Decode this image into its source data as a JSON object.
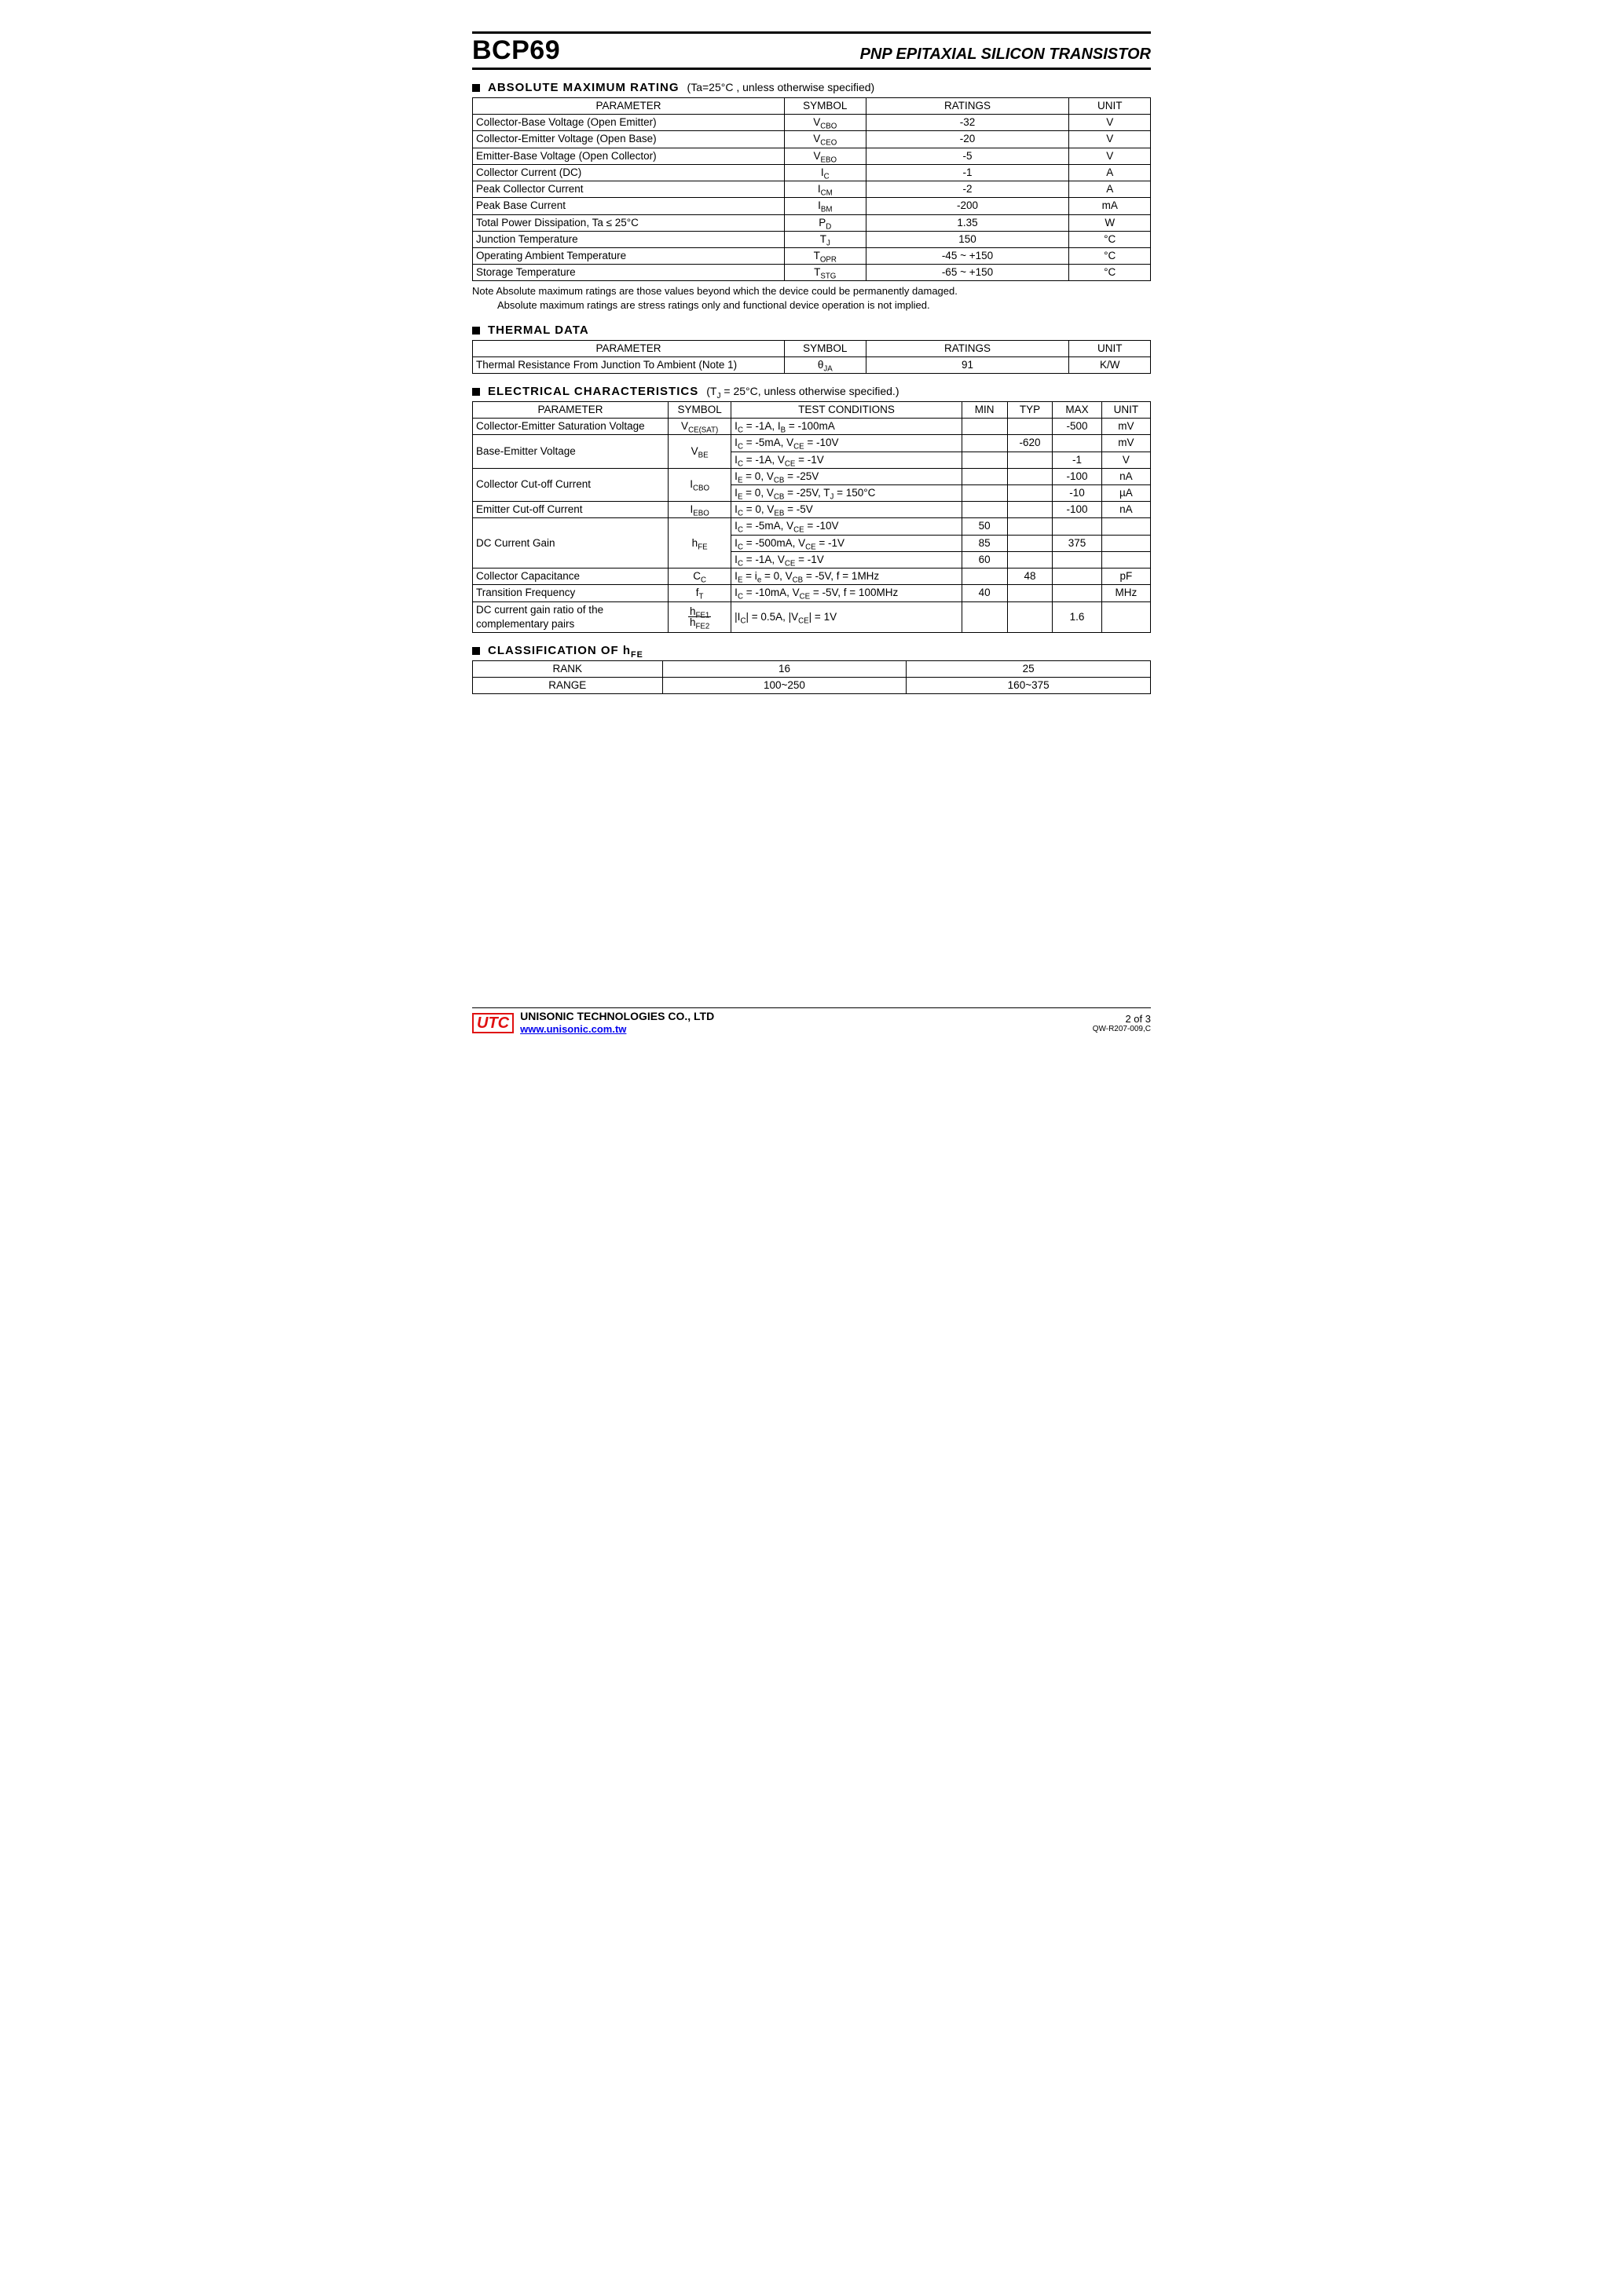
{
  "header": {
    "part_number": "BCP69",
    "title": "PNP EPITAXIAL SILICON TRANSISTOR"
  },
  "sections": {
    "amr": {
      "title": "ABSOLUTE MAXIMUM RATING",
      "conditions": "(Ta=25°C , unless otherwise specified)",
      "columns": [
        "PARAMETER",
        "SYMBOL",
        "RATINGS",
        "UNIT"
      ],
      "rows": [
        {
          "param": "Collector-Base Voltage (Open Emitter)",
          "sym_html": "V<sub>CBO</sub>",
          "rating": "-32",
          "unit": "V"
        },
        {
          "param": "Collector-Emitter Voltage (Open Base)",
          "sym_html": "V<sub>CEO</sub>",
          "rating": "-20",
          "unit": "V"
        },
        {
          "param": "Emitter-Base Voltage (Open Collector)",
          "sym_html": "V<sub>EBO</sub>",
          "rating": "-5",
          "unit": "V"
        },
        {
          "param": "Collector Current (DC)",
          "sym_html": "I<sub>C</sub>",
          "rating": "-1",
          "unit": "A"
        },
        {
          "param": "Peak Collector Current",
          "sym_html": "I<sub>CM</sub>",
          "rating": "-2",
          "unit": "A"
        },
        {
          "param": "Peak Base Current",
          "sym_html": "I<sub>BM</sub>",
          "rating": "-200",
          "unit": "mA"
        },
        {
          "param": "Total Power Dissipation, Ta ≤ 25°C",
          "sym_html": "P<sub>D</sub>",
          "rating": "1.35",
          "unit": "W"
        },
        {
          "param": "Junction Temperature",
          "sym_html": "T<sub>J</sub>",
          "rating": "150",
          "unit": "°C"
        },
        {
          "param": "Operating Ambient Temperature",
          "sym_html": "T<sub>OPR</sub>",
          "rating": "-45 ~ +150",
          "unit": "°C"
        },
        {
          "param": "Storage Temperature",
          "sym_html": "T<sub>STG</sub>",
          "rating": "-65 ~ +150",
          "unit": "°C"
        }
      ],
      "note_line1": "Note Absolute maximum ratings are those values beyond which the device could be permanently damaged.",
      "note_line2": "Absolute maximum ratings are stress ratings only and functional device operation is not implied."
    },
    "thermal": {
      "title": "THERMAL DATA",
      "columns": [
        "PARAMETER",
        "SYMBOL",
        "RATINGS",
        "UNIT"
      ],
      "rows": [
        {
          "param": "Thermal Resistance From Junction To Ambient (Note 1)",
          "sym_html": "θ<sub>JA</sub>",
          "rating": "91",
          "unit": "K/W"
        }
      ]
    },
    "elec": {
      "title": "ELECTRICAL CHARACTERISTICS",
      "conditions_html": "(T<sub>J</sub> = 25°C, unless otherwise specified.)",
      "columns": [
        "PARAMETER",
        "SYMBOL",
        "TEST CONDITIONS",
        "MIN",
        "TYP",
        "MAX",
        "UNIT"
      ]
    },
    "hfe": {
      "title_html": "CLASSIFICATION OF h<sub>FE</sub>",
      "rows": [
        {
          "label": "RANK",
          "v1": "16",
          "v2": "25"
        },
        {
          "label": "RANGE",
          "v1": "100~250",
          "v2": "160~375"
        }
      ]
    }
  },
  "elec_rows": {
    "vcesat": {
      "param": "Collector-Emitter Saturation Voltage",
      "sym_html": "V<sub>CE(SAT)</sub>",
      "cond_html": "I<sub>C</sub> = -1A, I<sub>B</sub> = -100mA",
      "min": "",
      "typ": "",
      "max": "-500",
      "unit": "mV"
    },
    "vbe1": {
      "cond_html": "I<sub>C</sub> = -5mA, V<sub>CE</sub> = -10V",
      "min": "",
      "typ": "-620",
      "max": "",
      "unit": "mV"
    },
    "vbe2": {
      "cond_html": "I<sub>C</sub> = -1A, V<sub>CE</sub> = -1V",
      "min": "",
      "typ": "",
      "max": "-1",
      "unit": "V"
    },
    "vbe_param": "Base-Emitter Voltage",
    "vbe_sym_html": "V<sub>BE</sub>",
    "icbo1": {
      "cond_html": "I<sub>E</sub> = 0, V<sub>CB</sub> = -25V",
      "min": "",
      "typ": "",
      "max": "-100",
      "unit": "nA"
    },
    "icbo2": {
      "cond_html": "I<sub>E</sub> = 0, V<sub>CB</sub> = -25V, T<sub>J</sub> = 150°C",
      "min": "",
      "typ": "",
      "max": "-10",
      "unit": "µA"
    },
    "icbo_param": "Collector Cut-off Current",
    "icbo_sym_html": "I<sub>CBO</sub>",
    "iebo": {
      "param": "Emitter Cut-off Current",
      "sym_html": "I<sub>EBO</sub>",
      "cond_html": "I<sub>C</sub> = 0, V<sub>EB</sub> = -5V",
      "min": "",
      "typ": "",
      "max": "-100",
      "unit": "nA"
    },
    "hfe1": {
      "cond_html": "I<sub>C</sub> = -5mA, V<sub>CE</sub> = -10V",
      "min": "50",
      "typ": "",
      "max": "",
      "unit": ""
    },
    "hfe2": {
      "cond_html": "I<sub>C</sub> = -500mA, V<sub>CE</sub> = -1V",
      "min": "85",
      "typ": "",
      "max": "375",
      "unit": ""
    },
    "hfe3": {
      "cond_html": "I<sub>C</sub> = -1A, V<sub>CE</sub> = -1V",
      "min": "60",
      "typ": "",
      "max": "",
      "unit": ""
    },
    "hfe_param": "DC Current Gain",
    "hfe_sym_html": "h<sub>FE</sub>",
    "cc": {
      "param": "Collector Capacitance",
      "sym_html": "C<sub>C</sub>",
      "cond_html": "I<sub>E</sub> = i<sub>e</sub> = 0, V<sub>CB</sub> = -5V, f = 1MHz",
      "min": "",
      "typ": "48",
      "max": "",
      "unit": "pF"
    },
    "ft": {
      "param": "Transition Frequency",
      "sym_html": "f<sub>T</sub>",
      "cond_html": "I<sub>C</sub> = -10mA, V<sub>CE</sub> = -5V, f = 100MHz",
      "min": "40",
      "typ": "",
      "max": "",
      "unit": "MHz"
    },
    "ratio": {
      "param": "DC current gain ratio of the complementary pairs",
      "sym_num": "h<sub>FE1</sub>",
      "sym_den": "h<sub>FE2</sub>",
      "cond_html": "|I<sub>C</sub>| = 0.5A, |V<sub>CE</sub>| = 1V",
      "min": "",
      "typ": "",
      "max": "1.6",
      "unit": ""
    }
  },
  "footer": {
    "logo_text": "UTC",
    "company": "UNISONIC TECHNOLOGIES CO., LTD",
    "url": "www.unisonic.com.tw",
    "page": "2 of 3",
    "docno": "QW-R207-009,C"
  }
}
